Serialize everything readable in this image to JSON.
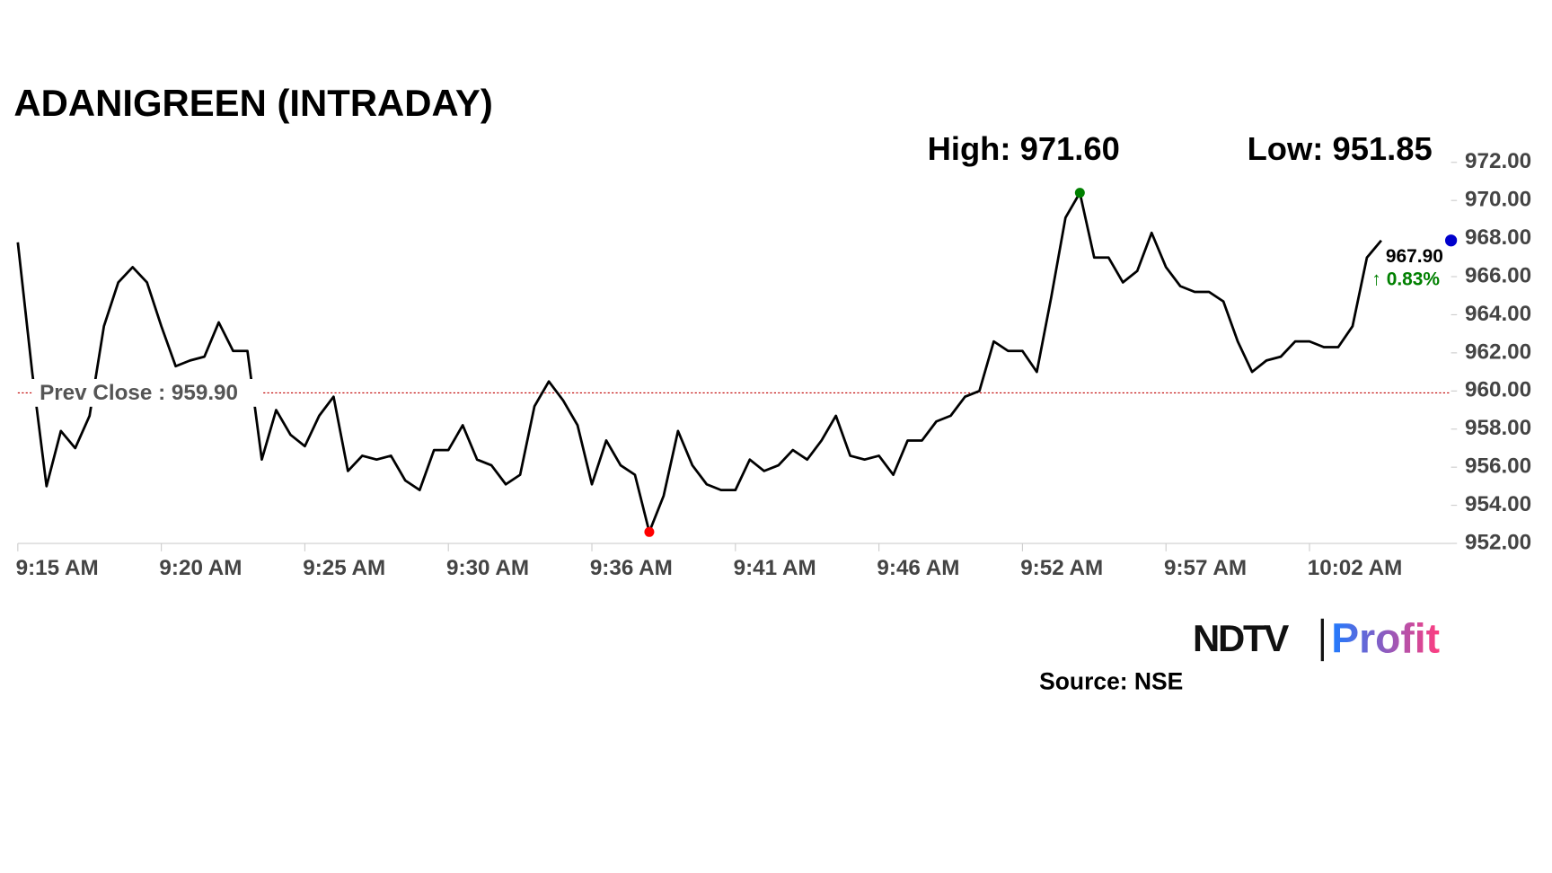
{
  "chart_data": {
    "type": "line",
    "title": "ADANIGREEN (INTRADAY)",
    "high_label": "High: 971.60",
    "low_label": "Low: 951.85",
    "prev_close": {
      "value": 959.9,
      "label": "Prev Close : 959.90",
      "color": "#c00000"
    },
    "last_label": "967.90",
    "change_label": "↑ 0.83%",
    "source": "Source: NSE",
    "logo": [
      "NDTV",
      "Profit"
    ],
    "color": "#000000",
    "high_index": 74,
    "high_color": "#008000",
    "low_index": 44,
    "low_color": "#ff0000",
    "last_color": "#0000cc",
    "categories": [
      "9:15 AM",
      null,
      null,
      null,
      null,
      null,
      null,
      null,
      null,
      null,
      "9:20 AM",
      null,
      null,
      null,
      null,
      null,
      null,
      null,
      null,
      null,
      "9:25 AM",
      null,
      null,
      null,
      null,
      null,
      null,
      null,
      null,
      null,
      "9:30 AM",
      null,
      null,
      null,
      null,
      null,
      null,
      null,
      null,
      null,
      "9:36 AM",
      null,
      null,
      null,
      null,
      null,
      null,
      null,
      null,
      null,
      "9:41 AM",
      null,
      null,
      null,
      null,
      null,
      null,
      null,
      null,
      null,
      "9:46 AM",
      null,
      null,
      null,
      null,
      null,
      null,
      null,
      null,
      null,
      "9:52 AM",
      null,
      null,
      null,
      null,
      null,
      null,
      null,
      null,
      null,
      "9:57 AM",
      null,
      null,
      null,
      null,
      null,
      null,
      null,
      null,
      null,
      "10:02 AM",
      null,
      null,
      null,
      null,
      null
    ],
    "values": [
      967.8,
      961.0,
      955.0,
      957.9,
      957.0,
      958.7,
      963.4,
      965.7,
      966.5,
      965.7,
      963.4,
      961.3,
      961.6,
      961.8,
      963.6,
      962.1,
      962.1,
      956.4,
      959.0,
      957.7,
      957.1,
      958.7,
      959.7,
      955.8,
      956.6,
      956.4,
      956.6,
      955.3,
      954.8,
      956.9,
      956.9,
      958.2,
      956.4,
      956.1,
      955.1,
      955.6,
      959.2,
      960.5,
      959.5,
      958.2,
      955.1,
      957.4,
      956.1,
      955.6,
      952.6,
      954.5,
      957.9,
      956.1,
      955.1,
      954.8,
      954.8,
      956.4,
      955.8,
      956.1,
      956.9,
      956.4,
      957.4,
      958.7,
      956.6,
      956.4,
      956.6,
      955.6,
      957.4,
      957.4,
      958.4,
      958.7,
      959.7,
      960.0,
      962.6,
      962.1,
      962.1,
      961.0,
      964.9,
      969.1,
      970.4,
      967.0,
      967.0,
      965.7,
      966.3,
      968.3,
      966.5,
      965.5,
      965.2,
      965.2,
      964.7,
      962.6,
      961.0,
      961.6,
      961.8,
      962.6,
      962.6,
      962.3,
      962.3,
      963.4,
      967.0,
      967.9
    ],
    "ylim": [
      952,
      972
    ],
    "yticks": [
      {
        "value": 952,
        "label": "952.00"
      },
      {
        "value": 954,
        "label": "954.00"
      },
      {
        "value": 956,
        "label": "956.00"
      },
      {
        "value": 958,
        "label": "958.00"
      },
      {
        "value": 960,
        "label": "960.00"
      },
      {
        "value": 962,
        "label": "962.00"
      },
      {
        "value": 964,
        "label": "964.00"
      },
      {
        "value": 966,
        "label": "966.00"
      },
      {
        "value": 968,
        "label": "968.00"
      },
      {
        "value": 970,
        "label": "970.00"
      },
      {
        "value": 972,
        "label": "972.00"
      }
    ]
  }
}
